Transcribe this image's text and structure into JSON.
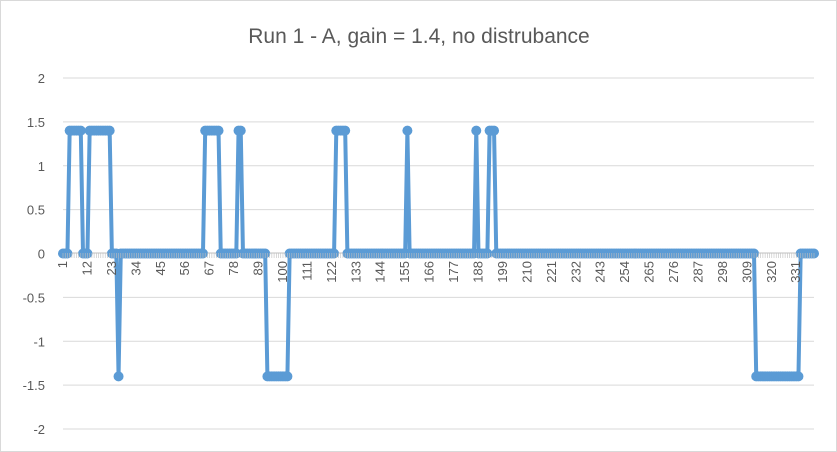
{
  "chart_data": {
    "type": "line",
    "title": "Run 1 - A, gain = 1.4, no distrubance",
    "xlabel": "",
    "ylabel": "",
    "ylim": [
      -2,
      2
    ],
    "y_ticks": [
      "2",
      "1.5",
      "1",
      "0.5",
      "0",
      "-0.5",
      "-1",
      "-1.5",
      "-2"
    ],
    "x_tick_labels": [
      "1",
      "12",
      "23",
      "34",
      "45",
      "56",
      "67",
      "78",
      "89",
      "100",
      "111",
      "122",
      "133",
      "144",
      "155",
      "166",
      "177",
      "188",
      "199",
      "210",
      "221",
      "232",
      "243",
      "254",
      "265",
      "276",
      "287",
      "298",
      "309",
      "320",
      "331"
    ],
    "x_range": [
      1,
      339
    ],
    "grid": true,
    "legend": "none",
    "series_color": "#5b9bd5",
    "series": [
      {
        "levels": [
          {
            "from": 1,
            "to": 3,
            "value": 0
          },
          {
            "from": 4,
            "to": 9,
            "value": 1.4
          },
          {
            "from": 10,
            "to": 12,
            "value": 0
          },
          {
            "from": 13,
            "to": 22,
            "value": 1.4
          },
          {
            "from": 23,
            "to": 25,
            "value": 0
          },
          {
            "from": 26,
            "to": 26,
            "value": -1.4
          },
          {
            "from": 27,
            "to": 64,
            "value": 0
          },
          {
            "from": 65,
            "to": 71,
            "value": 1.4
          },
          {
            "from": 72,
            "to": 79,
            "value": 0
          },
          {
            "from": 80,
            "to": 81,
            "value": 1.4
          },
          {
            "from": 82,
            "to": 92,
            "value": 0
          },
          {
            "from": 93,
            "to": 102,
            "value": -1.4
          },
          {
            "from": 103,
            "to": 123,
            "value": 0
          },
          {
            "from": 124,
            "to": 128,
            "value": 1.4
          },
          {
            "from": 129,
            "to": 155,
            "value": 0
          },
          {
            "from": 156,
            "to": 156,
            "value": 1.4
          },
          {
            "from": 157,
            "to": 186,
            "value": 0
          },
          {
            "from": 187,
            "to": 187,
            "value": 1.4
          },
          {
            "from": 188,
            "to": 192,
            "value": 0
          },
          {
            "from": 193,
            "to": 195,
            "value": 1.4
          },
          {
            "from": 196,
            "to": 312,
            "value": 0
          },
          {
            "from": 313,
            "to": 332,
            "value": -1.4
          },
          {
            "from": 333,
            "to": 339,
            "value": 0
          }
        ]
      }
    ]
  }
}
